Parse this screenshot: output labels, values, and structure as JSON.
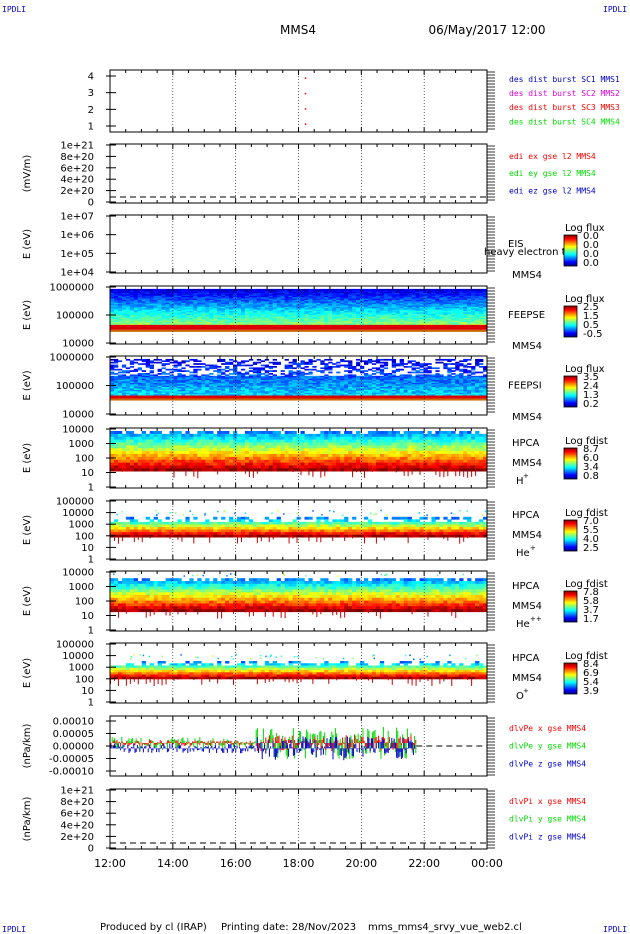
{
  "header": {
    "corner_tl": "IPDLI",
    "corner_tr": "IPDLI",
    "corner_bl": "IPDLI",
    "corner_br": "IPDLI",
    "title": "MMS4",
    "date": "06/May/2017 12:00"
  },
  "footer": {
    "produced": "Produced by cl (IRAP)",
    "printing": "Printing date: 28/Nov/2023",
    "file": "mms_mms4_srvy_vue_web2.cl"
  },
  "colors": {
    "red": "#ff0000",
    "green": "#00dd00",
    "blue": "#0000cc",
    "magenta": "#dd00dd"
  },
  "chart_data": [
    {
      "type": "scatter",
      "ylabel": "",
      "yticks": [
        "4",
        "3",
        "2",
        "1"
      ],
      "legend": [
        {
          "text": "des dist burst SC1 MMS1",
          "color": "#0000cc"
        },
        {
          "text": "des dist burst SC2 MMS2",
          "color": "#dd00dd"
        },
        {
          "text": "des dist burst SC3 MMS3",
          "color": "#ff0000"
        },
        {
          "text": "des dist burst SC4 MMS4",
          "color": "#00dd00"
        }
      ],
      "points": [
        {
          "x": 18.2,
          "y": 4
        },
        {
          "x": 18.2,
          "y": 3
        },
        {
          "x": 18.2,
          "y": 2
        },
        {
          "x": 18.2,
          "y": 1
        }
      ]
    },
    {
      "type": "line",
      "ylabel": "(mV/m)",
      "yticks": [
        "1e+21",
        "8e+20",
        "6e+20",
        "4e+20",
        "2e+20",
        "0"
      ],
      "legend": [
        {
          "text": "edi ex gse l2 MMS4",
          "color": "#ff0000"
        },
        {
          "text": "edi ey gse l2 MMS4",
          "color": "#00dd00"
        },
        {
          "text": "edi ez gse l2 MMS4",
          "color": "#0000cc"
        }
      ]
    },
    {
      "type": "heatmap",
      "ylabel": "E (eV)",
      "yticks": [
        "1e+07",
        "1e+06",
        "1e+05",
        "1e+04"
      ],
      "instrument": "EIS",
      "sub": "MMS4",
      "extra_label": "heavy electron to",
      "cbar_title": "Log flux",
      "cbar_ticks": [
        "0.0",
        "0.0",
        "0.0",
        "0.0"
      ]
    },
    {
      "type": "heatmap",
      "ylabel": "E (eV)",
      "yticks": [
        "1000000",
        "100000",
        "10000"
      ],
      "instrument": "FEEPSE",
      "sub": "MMS4",
      "cbar_title": "Log flux",
      "cbar_ticks": [
        "2.5",
        "1.5",
        "0.5",
        "-0.5"
      ]
    },
    {
      "type": "heatmap",
      "ylabel": "E (eV)",
      "yticks": [
        "1000000",
        "100000",
        "10000"
      ],
      "instrument": "FEEPSI",
      "sub": "MMS4",
      "cbar_title": "Log flux",
      "cbar_ticks": [
        "3.5",
        "2.4",
        "1.3",
        "0.2"
      ]
    },
    {
      "type": "heatmap",
      "ylabel": "E (eV)",
      "yticks": [
        "10000",
        "1000",
        "100",
        "10",
        "1"
      ],
      "instrument": "HPCA",
      "sub": "MMS4",
      "species": "H",
      "charge": "+",
      "cbar_title": "Log fdist",
      "cbar_ticks": [
        "8.7",
        "6.0",
        "3.4",
        "0.8"
      ]
    },
    {
      "type": "heatmap",
      "ylabel": "E (eV)",
      "yticks": [
        "100000",
        "10000",
        "1000",
        "100",
        "10",
        "1"
      ],
      "instrument": "HPCA",
      "sub": "MMS4",
      "species": "He",
      "charge": "+",
      "cbar_title": "Log fdist",
      "cbar_ticks": [
        "7.0",
        "5.5",
        "4.0",
        "2.5"
      ]
    },
    {
      "type": "heatmap",
      "ylabel": "E (eV)",
      "yticks": [
        "10000",
        "1000",
        "100",
        "10",
        "1"
      ],
      "instrument": "HPCA",
      "sub": "MMS4",
      "species": "He",
      "charge": "++",
      "cbar_title": "Log fdist",
      "cbar_ticks": [
        "7.8",
        "5.8",
        "3.7",
        "1.7"
      ]
    },
    {
      "type": "heatmap",
      "ylabel": "E (eV)",
      "yticks": [
        "100000",
        "10000",
        "1000",
        "100",
        "10",
        "1"
      ],
      "instrument": "HPCA",
      "sub": "MMS4",
      "species": "O",
      "charge": "+",
      "cbar_title": "Log fdist",
      "cbar_ticks": [
        "8.4",
        "6.9",
        "5.4",
        "3.9"
      ]
    },
    {
      "type": "line",
      "ylabel": "(nPa/km)",
      "yticks": [
        "0.00010",
        "0.00005",
        "0.00000",
        "-0.00005",
        "-0.00010"
      ],
      "legend": [
        {
          "text": "dlvPe x gse MMS4",
          "color": "#ff0000"
        },
        {
          "text": "dlvPe y gse MMS4",
          "color": "#00dd00"
        },
        {
          "text": "dlvPe z gse MMS4",
          "color": "#0000cc"
        }
      ]
    },
    {
      "type": "line",
      "ylabel": "(nPa/km)",
      "yticks": [
        "1e+21",
        "8e+20",
        "6e+20",
        "4e+20",
        "2e+20",
        "0"
      ],
      "legend": [
        {
          "text": "dlvPi x gse MMS4",
          "color": "#ff0000"
        },
        {
          "text": "dlvPi y gse MMS4",
          "color": "#00dd00"
        },
        {
          "text": "dlvPi z gse MMS4",
          "color": "#0000cc"
        }
      ]
    }
  ],
  "time_axis": {
    "ticks": [
      "12:00",
      "14:00",
      "16:00",
      "18:00",
      "20:00",
      "22:00",
      "00:00"
    ]
  }
}
